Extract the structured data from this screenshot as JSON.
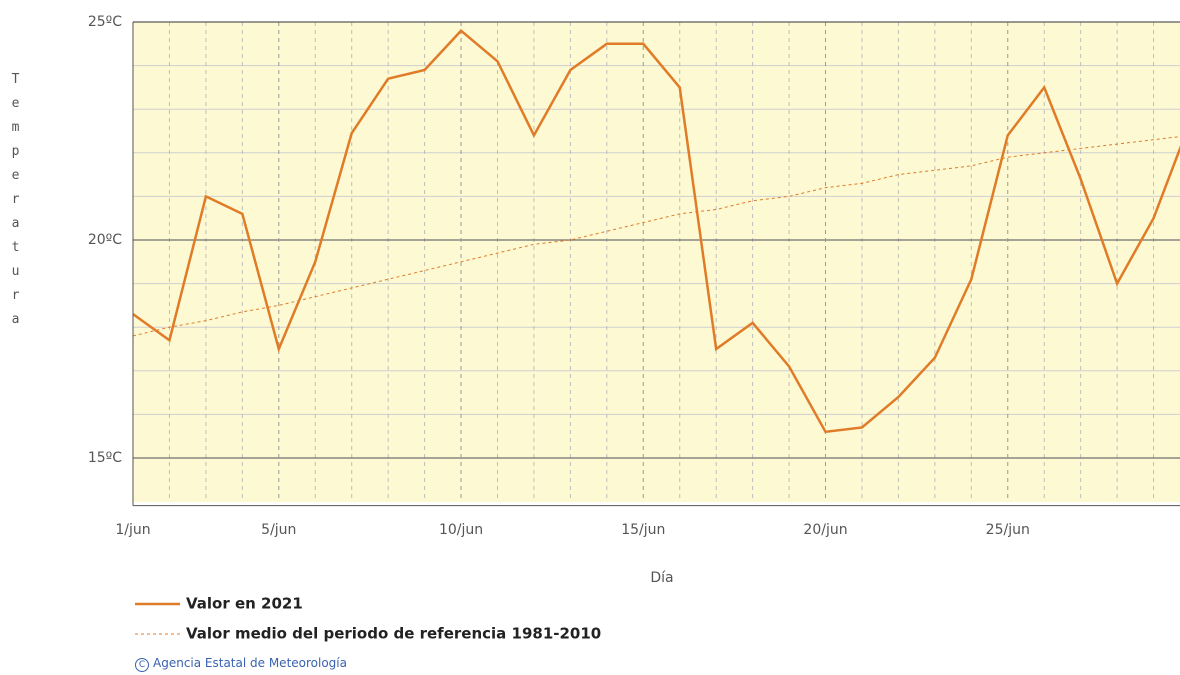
{
  "chart_data": {
    "type": "line",
    "y_label": "Temperatura",
    "x_label": "Día",
    "x": [
      1,
      2,
      3,
      4,
      5,
      6,
      7,
      8,
      9,
      10,
      11,
      12,
      13,
      14,
      15,
      16,
      17,
      18,
      19,
      20,
      21,
      22,
      23,
      24,
      25,
      26,
      27,
      28,
      29,
      30
    ],
    "series": [
      {
        "name": "Valor en 2021",
        "color": "#e07b28",
        "style": "solid",
        "values": [
          18.3,
          17.7,
          21.0,
          20.6,
          17.5,
          19.5,
          22.45,
          23.7,
          23.9,
          24.8,
          24.1,
          22.4,
          23.9,
          24.5,
          24.5,
          23.5,
          17.5,
          18.1,
          17.1,
          15.6,
          15.7,
          16.4,
          17.3,
          19.1,
          22.4,
          23.5,
          21.4,
          19.0,
          20.5,
          22.7
        ]
      },
      {
        "name": "Valor medio del periodo de referencia 1981-2010",
        "color": "#e07b28",
        "style": "dashed",
        "values": [
          17.8,
          18.0,
          18.15,
          18.35,
          18.5,
          18.7,
          18.9,
          19.1,
          19.3,
          19.5,
          19.7,
          19.9,
          20.0,
          20.2,
          20.4,
          20.6,
          20.7,
          20.9,
          21.0,
          21.2,
          21.3,
          21.5,
          21.6,
          21.7,
          21.9,
          22.0,
          22.1,
          22.2,
          22.3,
          22.4
        ]
      }
    ],
    "xlim": [
      1,
      30
    ],
    "xticks": [
      {
        "value": 1,
        "label": "1/jun"
      },
      {
        "value": 5,
        "label": "5/jun"
      },
      {
        "value": 10,
        "label": "10/jun"
      },
      {
        "value": 15,
        "label": "15/jun"
      },
      {
        "value": 20,
        "label": "20/jun"
      },
      {
        "value": 25,
        "label": "25/jun"
      }
    ],
    "xminorticks": [
      2,
      3,
      4,
      6,
      7,
      8,
      9,
      11,
      12,
      13,
      14,
      16,
      17,
      18,
      19,
      21,
      22,
      23,
      24,
      26,
      27,
      28,
      29
    ],
    "ylim": [
      14,
      25
    ],
    "yticks": [
      {
        "value": 15,
        "label": "15ºC"
      },
      {
        "value": 20,
        "label": "20ºC"
      },
      {
        "value": 25,
        "label": "25ºC"
      }
    ],
    "yminorticks": [
      16,
      17,
      18,
      19,
      21,
      22,
      23,
      24
    ],
    "grid": true
  },
  "footer": "Agencia Estatal de Meteorología"
}
